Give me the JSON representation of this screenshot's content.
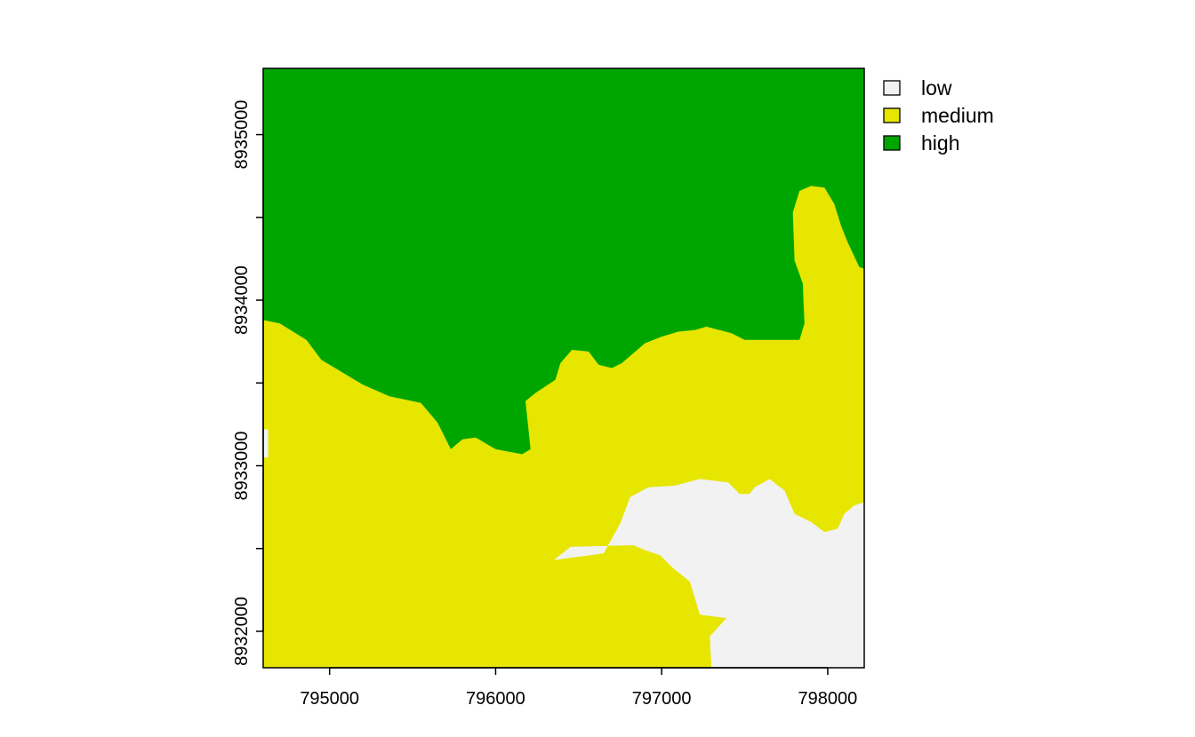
{
  "chart_data": {
    "type": "heatmap",
    "title": "",
    "xlabel": "",
    "ylabel": "",
    "xlim": [
      794600,
      798220
    ],
    "ylim": [
      8931780,
      8935400
    ],
    "x_ticks": [
      795000,
      796000,
      797000,
      798000
    ],
    "x_tick_labels": [
      "795000",
      "796000",
      "797000",
      "798000"
    ],
    "y_ticks": [
      8932000,
      8932500,
      8933000,
      8933500,
      8934000,
      8934500,
      8935000
    ],
    "y_tick_labels": [
      "8932000",
      "",
      "8933000",
      "",
      "8934000",
      "",
      "8935000"
    ],
    "legend_position": "top-right",
    "categories": [
      {
        "key": "low",
        "label": "low",
        "color": "#f2f2f2"
      },
      {
        "key": "medium",
        "label": "medium",
        "color": "#e6e600"
      },
      {
        "key": "high",
        "label": "high",
        "color": "#00a600"
      }
    ],
    "regions": [
      {
        "category": "high",
        "polygon": [
          [
            794600,
            8935400
          ],
          [
            798220,
            8935400
          ],
          [
            798220,
            8934190
          ],
          [
            798190,
            8934200
          ],
          [
            798120,
            8934350
          ],
          [
            798080,
            8934450
          ],
          [
            798040,
            8934580
          ],
          [
            797980,
            8934680
          ],
          [
            797900,
            8934690
          ],
          [
            797830,
            8934660
          ],
          [
            797790,
            8934530
          ],
          [
            797800,
            8934240
          ],
          [
            797850,
            8934100
          ],
          [
            797860,
            8933860
          ],
          [
            797830,
            8933760
          ],
          [
            797500,
            8933760
          ],
          [
            797420,
            8933800
          ],
          [
            797270,
            8933840
          ],
          [
            797200,
            8933820
          ],
          [
            797100,
            8933810
          ],
          [
            797000,
            8933780
          ],
          [
            796900,
            8933740
          ],
          [
            796830,
            8933680
          ],
          [
            796760,
            8933620
          ],
          [
            796700,
            8933590
          ],
          [
            796620,
            8933610
          ],
          [
            796560,
            8933690
          ],
          [
            796460,
            8933700
          ],
          [
            796390,
            8933620
          ],
          [
            796360,
            8933520
          ],
          [
            796240,
            8933440
          ],
          [
            796180,
            8933390
          ],
          [
            796210,
            8933100
          ],
          [
            796160,
            8933070
          ],
          [
            796000,
            8933100
          ],
          [
            795880,
            8933170
          ],
          [
            795800,
            8933160
          ],
          [
            795730,
            8933100
          ],
          [
            795650,
            8933260
          ],
          [
            795550,
            8933380
          ],
          [
            795360,
            8933420
          ],
          [
            795200,
            8933490
          ],
          [
            795100,
            8933550
          ],
          [
            794950,
            8933640
          ],
          [
            794860,
            8933760
          ],
          [
            794700,
            8933860
          ],
          [
            794600,
            8933880
          ]
        ]
      },
      {
        "category": "low",
        "polygon": [
          [
            797300,
            8931780
          ],
          [
            797290,
            8931970
          ],
          [
            797390,
            8932080
          ],
          [
            797230,
            8932100
          ],
          [
            797170,
            8932300
          ],
          [
            797070,
            8932380
          ],
          [
            796990,
            8932460
          ],
          [
            796900,
            8932490
          ],
          [
            796830,
            8932520
          ],
          [
            796450,
            8932510
          ],
          [
            796350,
            8932430
          ],
          [
            796650,
            8932470
          ],
          [
            796750,
            8932650
          ],
          [
            796810,
            8932810
          ],
          [
            796920,
            8932870
          ],
          [
            797080,
            8932880
          ],
          [
            797230,
            8932920
          ],
          [
            797400,
            8932900
          ],
          [
            797470,
            8932830
          ],
          [
            797530,
            8932830
          ],
          [
            797560,
            8932870
          ],
          [
            797650,
            8932920
          ],
          [
            797740,
            8932850
          ],
          [
            797800,
            8932710
          ],
          [
            797900,
            8932660
          ],
          [
            797980,
            8932600
          ],
          [
            798060,
            8932620
          ],
          [
            798100,
            8932710
          ],
          [
            798160,
            8932760
          ],
          [
            798220,
            8932780
          ],
          [
            798220,
            8931780
          ]
        ]
      },
      {
        "category": "low",
        "polygon": [
          [
            794600,
            8933220
          ],
          [
            794630,
            8933220
          ],
          [
            794630,
            8933050
          ],
          [
            794600,
            8933050
          ]
        ]
      }
    ]
  }
}
